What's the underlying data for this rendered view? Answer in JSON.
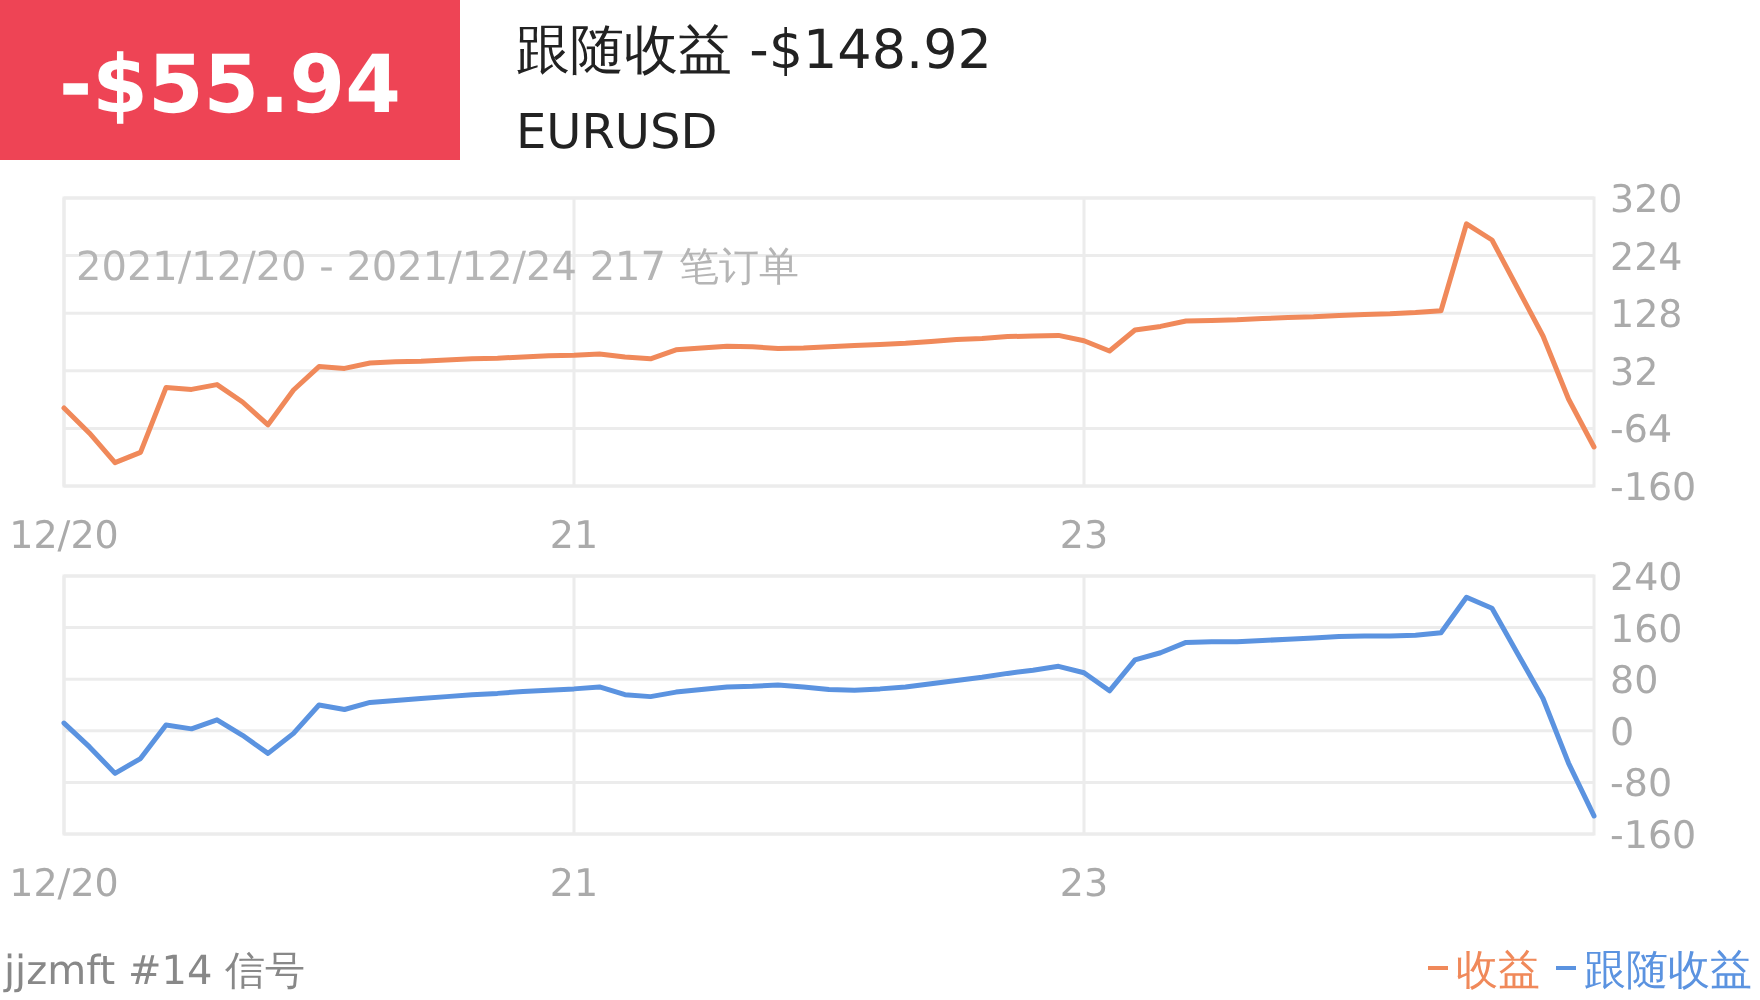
{
  "chart_data": [
    {
      "type": "line",
      "title": "跟随收益 -$148.92",
      "subtitle": "EURUSD",
      "annotations": [
        "-$55.94",
        "2021/12/20 - 2021/12/24 217 笔订单"
      ],
      "categories": [
        "12/20",
        null,
        null,
        null,
        null,
        null,
        null,
        null,
        null,
        null,
        null,
        null,
        null,
        null,
        null,
        null,
        null,
        null,
        null,
        null,
        "21",
        null,
        null,
        null,
        null,
        null,
        null,
        null,
        null,
        null,
        null,
        null,
        null,
        null,
        null,
        null,
        null,
        null,
        null,
        null,
        "23",
        null,
        null,
        null,
        null,
        null,
        null,
        null,
        null,
        null,
        null,
        null,
        null,
        null,
        null,
        null,
        null,
        null,
        null,
        null,
        null
      ],
      "ylim": [
        -160,
        320
      ],
      "yticks": [
        -160,
        -64,
        32,
        128,
        224,
        320
      ],
      "grid": true,
      "legend": "bottom right",
      "line_style": "solid",
      "marker": "none",
      "series": [
        {
          "name": "收益",
          "color": "#f0895a",
          "values": [
            -30,
            -72,
            -121,
            -104,
            4,
            1,
            9,
            -20,
            -58,
            0,
            39,
            36,
            45,
            47,
            48,
            50,
            52,
            53,
            55,
            57,
            58,
            60,
            55,
            52,
            67,
            70,
            73,
            72,
            69,
            70,
            72,
            74,
            76,
            78,
            81,
            84,
            86,
            89,
            90,
            91,
            82,
            65,
            100,
            106,
            115,
            116,
            117,
            119,
            121,
            122,
            124,
            126,
            127,
            129,
            132,
            277,
            250,
            170,
            90,
            -15,
            -95
          ]
        }
      ]
    },
    {
      "type": "line",
      "annotations": [
        "jjzmft #14 信号"
      ],
      "categories": [
        "12/20",
        null,
        null,
        null,
        null,
        null,
        null,
        null,
        null,
        null,
        null,
        null,
        null,
        null,
        null,
        null,
        null,
        null,
        null,
        null,
        "21",
        null,
        null,
        null,
        null,
        null,
        null,
        null,
        null,
        null,
        null,
        null,
        null,
        null,
        null,
        null,
        null,
        null,
        null,
        null,
        "23",
        null,
        null,
        null,
        null,
        null,
        null,
        null,
        null,
        null,
        null,
        null,
        null,
        null,
        null,
        null,
        null,
        null,
        null,
        null,
        null
      ],
      "ylim": [
        -160,
        240
      ],
      "yticks": [
        -160,
        -80,
        0,
        80,
        160,
        240
      ],
      "grid": true,
      "legend": "bottom right",
      "line_style": "solid",
      "marker": "none",
      "series": [
        {
          "name": "跟随收益",
          "color": "#5b93e0",
          "values": [
            12,
            -25,
            -66,
            -43,
            9,
            3,
            17,
            -7,
            -35,
            -4,
            40,
            33,
            44,
            47,
            50,
            53,
            56,
            58,
            61,
            63,
            65,
            68,
            56,
            53,
            60,
            64,
            68,
            69,
            71,
            68,
            64,
            63,
            65,
            68,
            73,
            78,
            83,
            89,
            94,
            100,
            90,
            62,
            110,
            121,
            137,
            138,
            138,
            140,
            142,
            144,
            146,
            147,
            147,
            148,
            152,
            207,
            190,
            120,
            50,
            -50,
            -132
          ]
        }
      ]
    }
  ]
}
